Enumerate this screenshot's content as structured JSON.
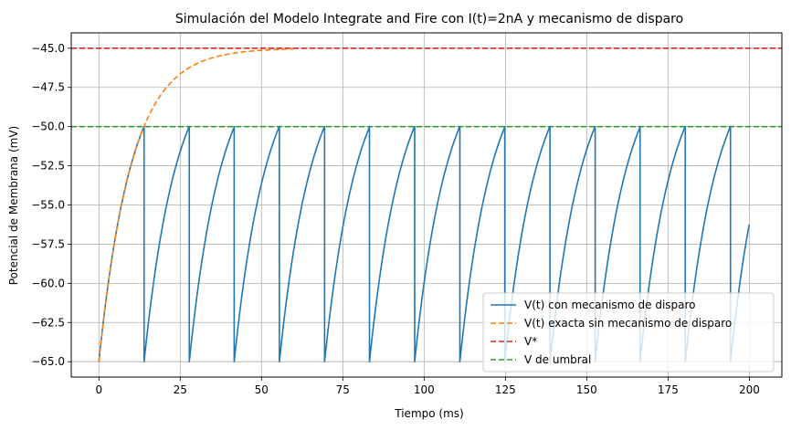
{
  "chart_data": {
    "type": "line",
    "title": "Simulación del Modelo Integrate and Fire con I(t)=2nA y mecanismo de disparo",
    "xlabel": "Tiempo (ms)",
    "ylabel": "Potencial de Membrana (mV)",
    "xlim": [
      -8.5,
      210
    ],
    "ylim": [
      -65.98,
      -44.02
    ],
    "xticks": [
      0,
      25,
      50,
      75,
      100,
      125,
      150,
      175,
      200
    ],
    "yticks": [
      -65.0,
      -62.5,
      -60.0,
      -57.5,
      -55.0,
      -52.5,
      -50.0,
      -47.5,
      -45.0
    ],
    "xtick_labels": [
      "0",
      "25",
      "50",
      "75",
      "100",
      "125",
      "150",
      "175",
      "200"
    ],
    "ytick_labels": [
      "−65.0",
      "−62.5",
      "−60.0",
      "−57.5",
      "−55.0",
      "−52.5",
      "−50.0",
      "−47.5",
      "−45.0"
    ],
    "grid": true,
    "legend_position": "lower-right",
    "series": [
      {
        "name": "V(t) con mecanismo de disparo",
        "color": "#1f77b4",
        "style": "solid",
        "rest_value": -65.0,
        "threshold_value": -50.0,
        "spike_times": [
          13.9,
          27.8,
          41.6,
          55.5,
          69.4,
          83.2,
          97.1,
          111.0,
          124.8,
          138.7,
          152.6,
          166.4,
          180.3,
          194.2
        ],
        "end": {
          "x": 200,
          "y": -56.6
        },
        "curve": {
          "asymptote": -45.0,
          "tau": 10
        }
      },
      {
        "name": "V(t) exacta sin mecanismo de disparo",
        "color": "#ff7f0e",
        "style": "dashed",
        "x_range": [
          0,
          60
        ],
        "start_value": -65.0,
        "curve": {
          "asymptote": -45.0,
          "tau": 10
        }
      },
      {
        "name": "V*",
        "color": "#d62728",
        "style": "dashed",
        "value": -45.0
      },
      {
        "name": "V de umbral",
        "color": "#2ca02c",
        "style": "dashed",
        "value": -50.0
      }
    ]
  }
}
